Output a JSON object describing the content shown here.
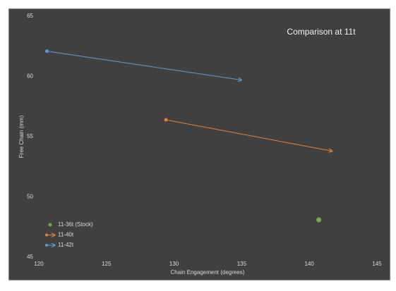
{
  "chart_data": {
    "type": "scatter",
    "title": "Comparison at 11t",
    "x_label": "Chain Engagement  (degrees)",
    "y_label": "Free Chain (mm)",
    "xlim": [
      120,
      145
    ],
    "xticks": [
      120,
      125,
      130,
      135,
      140,
      145
    ],
    "ylim": [
      45,
      65
    ],
    "yticks": [
      45,
      50,
      55,
      60,
      65
    ],
    "legend": "lower left",
    "series": [
      {
        "name": "11-36t (Stock)",
        "color": "#70ad47",
        "x": [
          140.7
        ],
        "values": [
          48.1
        ]
      },
      {
        "name": "11-40t",
        "color": "#ed7d31",
        "x": [
          129.4,
          141.7
        ],
        "values": [
          56.4,
          53.8
        ]
      },
      {
        "name": "11-42t",
        "color": "#5b9bd5",
        "x": [
          120.6,
          135.0
        ],
        "values": [
          62.1,
          59.7
        ]
      }
    ]
  }
}
